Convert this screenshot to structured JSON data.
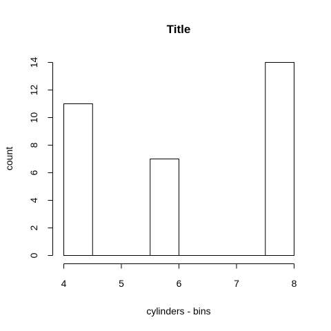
{
  "chart_data": {
    "type": "bar",
    "title": "Title",
    "xlabel": "cylinders - bins",
    "ylabel": "count",
    "bins": [
      {
        "x0": 4.0,
        "x1": 4.5,
        "count": 11
      },
      {
        "x0": 4.5,
        "x1": 5.0,
        "count": 0
      },
      {
        "x0": 5.0,
        "x1": 5.5,
        "count": 0
      },
      {
        "x0": 5.5,
        "x1": 6.0,
        "count": 7
      },
      {
        "x0": 6.0,
        "x1": 6.5,
        "count": 0
      },
      {
        "x0": 6.5,
        "x1": 7.0,
        "count": 0
      },
      {
        "x0": 7.0,
        "x1": 7.5,
        "count": 0
      },
      {
        "x0": 7.5,
        "x1": 8.0,
        "count": 14
      }
    ],
    "xlim": [
      4,
      8
    ],
    "ylim": [
      0,
      14
    ],
    "xticks": [
      "4",
      "5",
      "6",
      "7",
      "8"
    ],
    "yticks": [
      "0",
      "2",
      "4",
      "6",
      "8",
      "10",
      "12",
      "14"
    ],
    "grid": false,
    "colors": {
      "bar_fill": "#ffffff",
      "bar_stroke": "#000000"
    }
  }
}
